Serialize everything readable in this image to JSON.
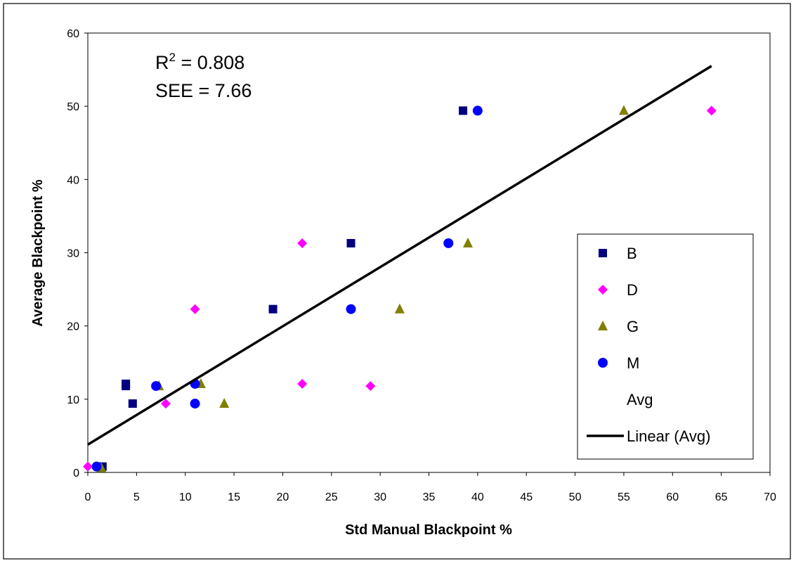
{
  "chart_data": {
    "type": "scatter",
    "title": "",
    "xlabel": "Std Manual Blackpoint %",
    "ylabel": "Average Blackpoint %",
    "xlim": [
      0,
      70
    ],
    "ylim": [
      0,
      60
    ],
    "xticks": [
      "0",
      "5",
      "10",
      "15",
      "20",
      "25",
      "30",
      "35",
      "40",
      "45",
      "50",
      "55",
      "60",
      "65",
      "70"
    ],
    "yticks": [
      "0",
      "10",
      "20",
      "30",
      "40",
      "50",
      "60"
    ],
    "grid": false,
    "legend_position": "right",
    "annotations": {
      "r2_prefix": "R",
      "r2_sup": "2",
      "r2_value": " = 0.808",
      "see": "SEE = 7.66"
    },
    "series": [
      {
        "name": "B",
        "marker": "square",
        "color": "#000080",
        "points": [
          {
            "x": 1.5,
            "y": 0.8
          },
          {
            "x": 3.9,
            "y": 12.1
          },
          {
            "x": 3.9,
            "y": 11.8
          },
          {
            "x": 4.6,
            "y": 9.4
          },
          {
            "x": 19,
            "y": 22.3
          },
          {
            "x": 27,
            "y": 31.3
          },
          {
            "x": 38.5,
            "y": 49.4
          }
        ]
      },
      {
        "name": "D",
        "marker": "diamond",
        "color": "#FF00FF",
        "points": [
          {
            "x": 0,
            "y": 0.8
          },
          {
            "x": 8,
            "y": 9.4
          },
          {
            "x": 11,
            "y": 22.3
          },
          {
            "x": 22,
            "y": 31.3
          },
          {
            "x": 22,
            "y": 12.1
          },
          {
            "x": 29,
            "y": 11.8
          },
          {
            "x": 64,
            "y": 49.4
          }
        ]
      },
      {
        "name": "G",
        "marker": "triangle",
        "color": "#808000",
        "points": [
          {
            "x": 1.4,
            "y": 0.6
          },
          {
            "x": 7.3,
            "y": 11.8
          },
          {
            "x": 11.6,
            "y": 12.1
          },
          {
            "x": 14,
            "y": 9.4
          },
          {
            "x": 32,
            "y": 22.3
          },
          {
            "x": 39,
            "y": 31.3
          },
          {
            "x": 55,
            "y": 49.4
          }
        ]
      },
      {
        "name": "M",
        "marker": "circle",
        "color": "#0000FF",
        "points": [
          {
            "x": 0.9,
            "y": 0.8
          },
          {
            "x": 7,
            "y": 11.8
          },
          {
            "x": 11,
            "y": 12.1
          },
          {
            "x": 11,
            "y": 9.4
          },
          {
            "x": 27,
            "y": 22.3
          },
          {
            "x": 37,
            "y": 31.3
          },
          {
            "x": 40,
            "y": 49.4
          }
        ]
      },
      {
        "name": "Avg",
        "marker": "none",
        "color": "#FFFFFF",
        "points": []
      },
      {
        "name": "Linear (Avg)",
        "type": "line",
        "color": "#000000",
        "points": [
          {
            "x": 0,
            "y": 3.8
          },
          {
            "x": 64,
            "y": 55.5
          }
        ]
      }
    ]
  }
}
